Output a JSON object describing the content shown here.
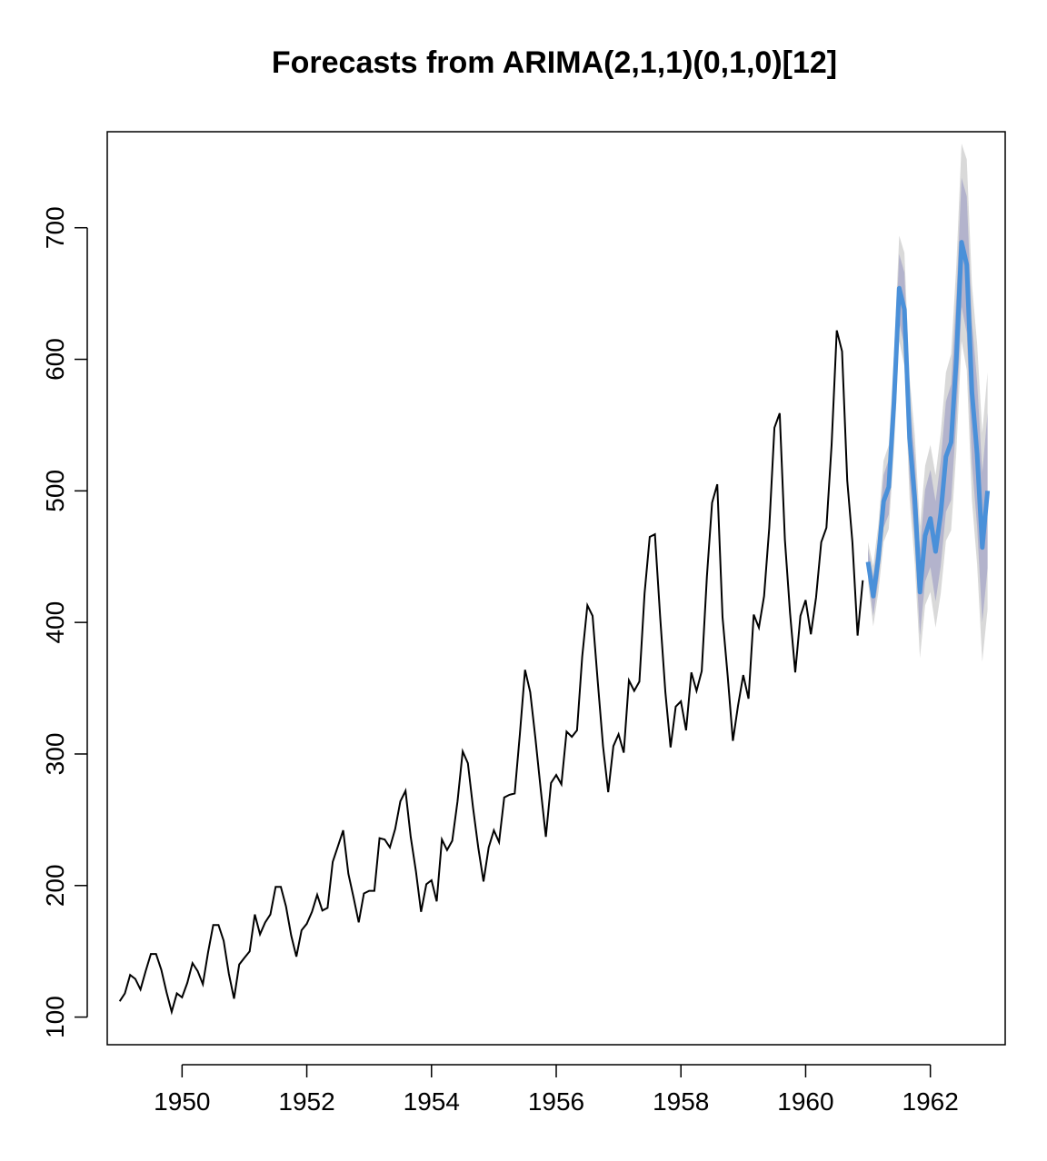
{
  "chart_data": {
    "type": "line",
    "title": "Forecasts from ARIMA(2,1,1)(0,1,0)[12]",
    "xlabel": "",
    "ylabel": "",
    "xlim": [
      1948.8,
      1963.2
    ],
    "ylim": [
      79,
      773
    ],
    "x_ticks": [
      1950,
      1952,
      1954,
      1956,
      1958,
      1960,
      1962
    ],
    "x_tick_labels": [
      "1950",
      "1952",
      "1954",
      "1956",
      "1958",
      "1960",
      "1962"
    ],
    "y_ticks": [
      100,
      200,
      300,
      400,
      500,
      600,
      700
    ],
    "y_tick_labels": [
      "100",
      "200",
      "300",
      "400",
      "500",
      "600",
      "700"
    ],
    "grid": false,
    "legend": "none",
    "colors": {
      "history": "#000000",
      "forecast": "#4a90d9",
      "band80": "#b3b3cc",
      "band95": "#d9d9d9"
    },
    "history": {
      "start": 1949,
      "frequency": 12,
      "values": [
        112,
        118,
        132,
        129,
        121,
        135,
        148,
        148,
        136,
        119,
        104,
        118,
        115,
        126,
        141,
        135,
        125,
        149,
        170,
        170,
        158,
        133,
        114,
        140,
        145,
        150,
        178,
        163,
        172,
        178,
        199,
        199,
        184,
        162,
        146,
        166,
        171,
        180,
        193,
        181,
        183,
        218,
        230,
        242,
        209,
        191,
        172,
        194,
        196,
        196,
        236,
        235,
        229,
        243,
        264,
        272,
        237,
        211,
        180,
        201,
        204,
        188,
        235,
        227,
        234,
        264,
        302,
        293,
        259,
        229,
        203,
        229,
        242,
        233,
        267,
        269,
        270,
        315,
        364,
        347,
        312,
        274,
        237,
        278,
        284,
        277,
        317,
        313,
        318,
        374,
        413,
        405,
        355,
        306,
        271,
        306,
        315,
        301,
        356,
        348,
        355,
        422,
        465,
        467,
        404,
        347,
        305,
        336,
        340,
        318,
        362,
        348,
        363,
        435,
        491,
        505,
        404,
        359,
        310,
        337,
        360,
        342,
        406,
        396,
        420,
        472,
        548,
        559,
        463,
        407,
        362,
        405,
        417,
        391,
        419,
        461,
        472,
        535,
        622,
        606,
        508,
        461,
        390,
        432
      ]
    },
    "forecast": {
      "start": 1961,
      "frequency": 12,
      "mean": [
        446,
        420,
        449,
        492,
        503,
        567,
        654,
        638,
        540,
        494,
        423,
        466,
        479,
        454,
        483,
        526,
        537,
        601,
        689,
        672,
        575,
        528,
        457,
        500
      ],
      "lo80": [
        436,
        405,
        432,
        472,
        482,
        543,
        628,
        610,
        510,
        462,
        390,
        431,
        442,
        416,
        443,
        484,
        493,
        554,
        640,
        620,
        521,
        473,
        400,
        441
      ],
      "hi80": [
        456,
        435,
        466,
        512,
        524,
        591,
        680,
        666,
        570,
        526,
        456,
        501,
        516,
        492,
        523,
        568,
        581,
        648,
        738,
        724,
        629,
        583,
        514,
        559
      ],
      "lo95": [
        431,
        397,
        423,
        461,
        471,
        530,
        614,
        595,
        494,
        445,
        373,
        413,
        423,
        396,
        422,
        462,
        470,
        530,
        614,
        592,
        493,
        444,
        370,
        410
      ],
      "hi95": [
        461,
        443,
        475,
        523,
        535,
        604,
        694,
        681,
        586,
        543,
        473,
        519,
        535,
        512,
        544,
        590,
        604,
        672,
        764,
        752,
        657,
        612,
        544,
        590
      ]
    }
  }
}
